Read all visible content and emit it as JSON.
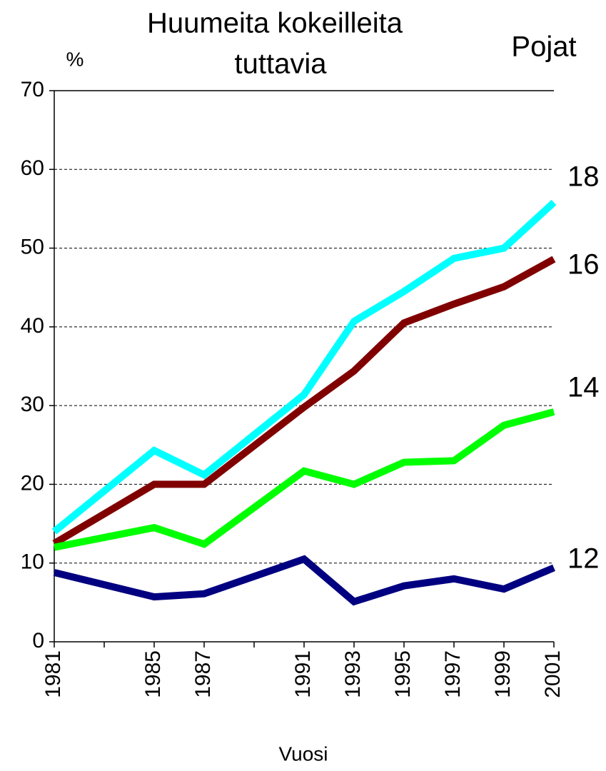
{
  "chart_data": {
    "type": "line",
    "title": [
      "Huumeita kokeilleita",
      "tuttavia"
    ],
    "y_label": "%",
    "legend_title": "Pojat",
    "x_label": "Vuosi",
    "x": [
      1981,
      1985,
      1987,
      1991,
      1993,
      1995,
      1997,
      1999,
      2001
    ],
    "xlim": [
      1981,
      2001
    ],
    "xticks": [
      1981,
      1985,
      1987,
      1991,
      1993,
      1995,
      1997,
      1999,
      2001
    ],
    "xminorticks": [
      1983,
      1989
    ],
    "ylim": [
      0,
      70
    ],
    "yticks": [
      0,
      10,
      20,
      30,
      40,
      50,
      60,
      70
    ],
    "grid": true,
    "series": [
      {
        "name": "18",
        "color": "#00ffff",
        "values": [
          14.0,
          24.3,
          21.2,
          31.4,
          40.7,
          44.5,
          48.7,
          50.0,
          55.8
        ]
      },
      {
        "name": "16",
        "color": "#800000",
        "values": [
          12.5,
          20.0,
          20.0,
          29.8,
          34.4,
          40.5,
          42.9,
          45.1,
          48.6
        ]
      },
      {
        "name": "14",
        "color": "#00ff00",
        "values": [
          12.0,
          14.5,
          12.4,
          21.7,
          20.0,
          22.8,
          23.0,
          27.5,
          29.2
        ]
      },
      {
        "name": "12",
        "color": "#000080",
        "values": [
          8.8,
          5.7,
          6.1,
          10.5,
          5.1,
          7.1,
          8.0,
          6.7,
          9.4
        ]
      }
    ]
  }
}
